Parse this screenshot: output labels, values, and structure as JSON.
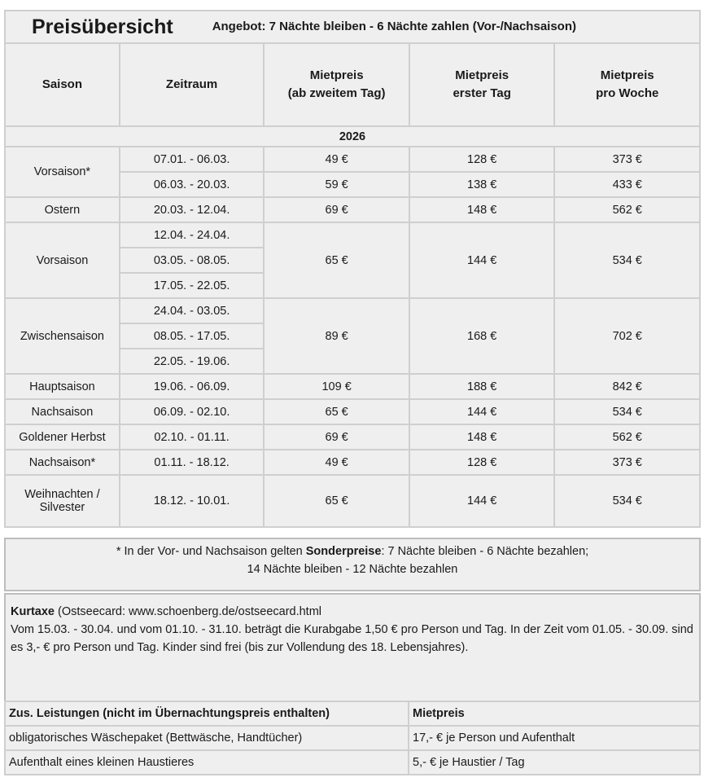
{
  "title": "Preisübersicht",
  "offer": "Angebot: 7 Nächte bleiben - 6 Nächte zahlen (Vor-/Nachsaison)",
  "headers": {
    "saison": "Saison",
    "zeitraum": "Zeitraum",
    "p1a": "Mietpreis",
    "p1b": "(ab zweitem Tag)",
    "p2a": "Mietpreis",
    "p2b": "erster Tag",
    "p3a": "Mietpreis",
    "p3b": "pro Woche"
  },
  "year": "2026",
  "rows": [
    {
      "season": "Vorsaison*",
      "dates": [
        "07.01. - 06.03.",
        "06.03. - 20.03."
      ],
      "day": [
        "49 €",
        "59 €"
      ],
      "first": [
        "128 €",
        "138 €"
      ],
      "week": [
        "373 €",
        "433 €"
      ]
    },
    {
      "season": "Ostern",
      "dates": [
        "20.03. - 12.04."
      ],
      "day": "69 €",
      "first": "148 €",
      "week": "562 €"
    },
    {
      "season": "Vorsaison",
      "dates": [
        "12.04. - 24.04.",
        "03.05. - 08.05.",
        "17.05. - 22.05."
      ],
      "day": "65 €",
      "first": "144 €",
      "week": "534 €"
    },
    {
      "season": "Zwischensaison",
      "dates": [
        "24.04. - 03.05.",
        "08.05. - 17.05.",
        "22.05. - 19.06."
      ],
      "day": "89 €",
      "first": "168 €",
      "week": "702 €"
    },
    {
      "season": "Hauptsaison",
      "dates": [
        "19.06. - 06.09."
      ],
      "day": "109 €",
      "first": "188 €",
      "week": "842 €"
    },
    {
      "season": "Nachsaison",
      "dates": [
        "06.09. - 02.10."
      ],
      "day": "65 €",
      "first": "144 €",
      "week": "534 €"
    },
    {
      "season": "Goldener Herbst",
      "dates": [
        "02.10. - 01.11."
      ],
      "day": "69 €",
      "first": "148 €",
      "week": "562 €"
    },
    {
      "season": "Nachsaison*",
      "dates": [
        "01.11. - 18.12."
      ],
      "day": "49 €",
      "first": "128 €",
      "week": "373 €"
    },
    {
      "season": "Weihnachten / Silvester",
      "season_a": "Weihnachten /",
      "season_b": "Silvester",
      "dates": [
        "18.12. - 10.01."
      ],
      "day": "65 €",
      "first": "144 €",
      "week": "534 €"
    }
  ],
  "note": {
    "pre": "* In der Vor- und Nachsaison gelten ",
    "bold": "Sonderpreise",
    "post": ": 7 Nächte bleiben - 6 Nächte bezahlen;",
    "line2": "14 Nächte bleiben - 12 Nächte bezahlen"
  },
  "kurtaxe": {
    "bold": "Kurtaxe",
    "link": " (Ostseecard: www.schoenberg.de/ostseecard.html",
    "text": "Vom 15.03. - 30.04. und vom 01.10. - 31.10. beträgt die Kurabgabe 1,50 € pro Person und Tag. In der Zeit vom 01.05. - 30.09. sind es 3,- € pro Person und Tag. Kinder sind frei (bis zur Vollendung des 18. Lebensjahres)."
  },
  "services": {
    "header": [
      "Zus. Leistungen (nicht im Übernachtungspreis enthalten)",
      "Mietpreis"
    ],
    "rows": [
      [
        "obligatorisches Wäschepaket (Bettwäsche, Handtücher)",
        "17,- € je Person und Aufenthalt"
      ],
      [
        "Aufenthalt eines kleinen Haustieres",
        "5,- € je Haustier / Tag"
      ]
    ]
  }
}
